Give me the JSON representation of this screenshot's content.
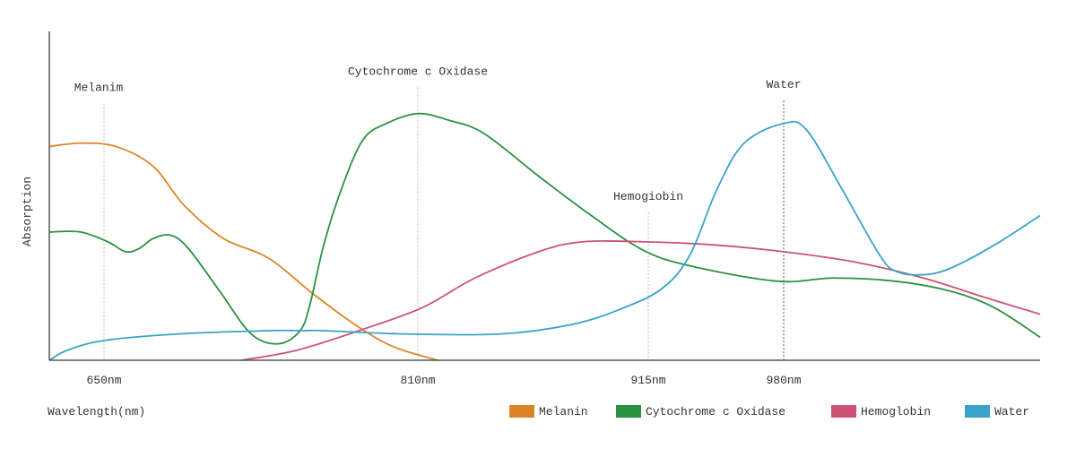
{
  "chart_data": {
    "type": "line",
    "title": "",
    "xlabel": "Wavelength(nm)",
    "ylabel": "Absorption",
    "x_ticks": [
      650,
      810,
      915,
      980
    ],
    "x_tick_labels": [
      "650nm",
      "810nm",
      "915nm",
      "980nm"
    ],
    "xlim": [
      622,
      1103
    ],
    "ylim": [
      0,
      1
    ],
    "grid": false,
    "legend_position": "bottom-right",
    "annotations": [
      {
        "label": "Melanim",
        "x": 650,
        "y": 0.78,
        "color": "#bbbbbb"
      },
      {
        "label": "Cytochrome c Oxidase",
        "x": 810,
        "y": 0.83,
        "color": "#bbbbbb"
      },
      {
        "label": "Hemogiobin",
        "x": 915,
        "y": 0.45,
        "color": "#bbbbbb"
      },
      {
        "label": "Water",
        "x": 980,
        "y": 0.79,
        "color": "#555555"
      }
    ],
    "series": [
      {
        "name": "Melanin",
        "color": "#dd8526",
        "x": [
          622,
          638,
          656,
          675,
          691,
          711,
          734,
          757,
          780,
          798,
          819
        ],
        "y": [
          0.65,
          0.66,
          0.65,
          0.59,
          0.47,
          0.37,
          0.31,
          0.2,
          0.1,
          0.04,
          0
        ]
      },
      {
        "name": "Cytochrome c Oxidase",
        "color": "#2a9141",
        "x": [
          622,
          638,
          652,
          661,
          668,
          675,
          684,
          693,
          709,
          725,
          739,
          750,
          755,
          762,
          771,
          782,
          794,
          810,
          824,
          840,
          865,
          889,
          914,
          940,
          978,
          1004,
          1034,
          1060,
          1081,
          1103
        ],
        "y": [
          0.39,
          0.39,
          0.36,
          0.33,
          0.34,
          0.37,
          0.38,
          0.34,
          0.21,
          0.08,
          0.05,
          0.09,
          0.17,
          0.35,
          0.52,
          0.67,
          0.72,
          0.75,
          0.73,
          0.69,
          0.56,
          0.44,
          0.33,
          0.28,
          0.24,
          0.25,
          0.24,
          0.21,
          0.16,
          0.07
        ]
      },
      {
        "name": "Hemoglobin",
        "color": "#cc5275",
        "x": [
          720,
          748,
          780,
          812,
          836,
          865,
          885,
          914,
          948,
          980,
          1013,
          1047,
          1077,
          1103
        ],
        "y": [
          0,
          0.03,
          0.09,
          0.16,
          0.25,
          0.33,
          0.36,
          0.36,
          0.35,
          0.33,
          0.3,
          0.25,
          0.19,
          0.14
        ]
      },
      {
        "name": "Water",
        "color": "#3aa3c9",
        "x": [
          622,
          631,
          650,
          688,
          734,
          752,
          762,
          803,
          848,
          881,
          904,
          922,
          935,
          948,
          961,
          980,
          991,
          1008,
          1026,
          1034,
          1047,
          1060,
          1081,
          1103
        ],
        "y": [
          0,
          0.03,
          0.06,
          0.08,
          0.09,
          0.09,
          0.09,
          0.08,
          0.08,
          0.11,
          0.16,
          0.22,
          0.32,
          0.52,
          0.66,
          0.72,
          0.7,
          0.52,
          0.32,
          0.27,
          0.26,
          0.28,
          0.35,
          0.44
        ]
      }
    ]
  }
}
